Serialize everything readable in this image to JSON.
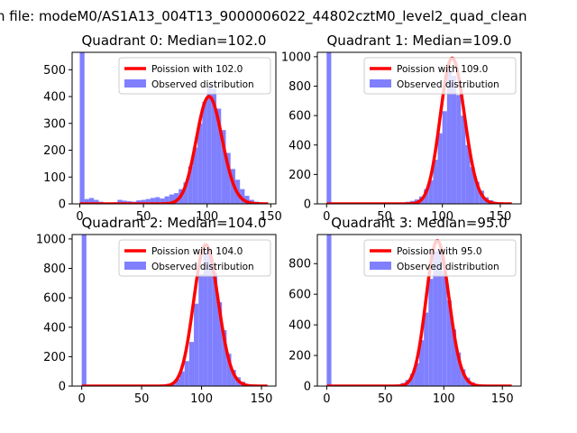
{
  "figure": {
    "suptitle": "n file: modeM0/AS1A13_004T13_9000006022_44802cztM0_level2_quad_clean"
  },
  "colors": {
    "hist": "#8080ff",
    "poisson": "#ff0000",
    "frame": "#000000"
  },
  "chart_data": [
    {
      "type": "bar",
      "title": "Quadrant 0: Median=102.0",
      "xlim": [
        -6,
        154
      ],
      "ylim": [
        0,
        565
      ],
      "xticks": [
        0,
        50,
        100,
        150
      ],
      "yticks": [
        0,
        100,
        200,
        300,
        400,
        500
      ],
      "legend": {
        "placement": "upper right",
        "entries": [
          "Poission with 102.0",
          "Observed distribution"
        ]
      },
      "poisson": {
        "label": "Poission with 102.0",
        "mean": 102.0,
        "peak": 400,
        "x_range": [
          0,
          148
        ]
      },
      "histogram": {
        "label": "Observed distribution",
        "bin_width": 3.7,
        "bins": [
          {
            "x0": 0,
            "h": 565
          },
          {
            "x0": 3.7,
            "h": 18
          },
          {
            "x0": 7.4,
            "h": 22
          },
          {
            "x0": 11.1,
            "h": 15
          },
          {
            "x0": 14.8,
            "h": 8
          },
          {
            "x0": 18.5,
            "h": 5
          },
          {
            "x0": 22.2,
            "h": 3
          },
          {
            "x0": 25.9,
            "h": 6
          },
          {
            "x0": 29.6,
            "h": 15
          },
          {
            "x0": 33.3,
            "h": 12
          },
          {
            "x0": 37,
            "h": 10
          },
          {
            "x0": 40.7,
            "h": 8
          },
          {
            "x0": 44.4,
            "h": 13
          },
          {
            "x0": 48.1,
            "h": 15
          },
          {
            "x0": 51.8,
            "h": 18
          },
          {
            "x0": 55.5,
            "h": 22
          },
          {
            "x0": 59.2,
            "h": 25
          },
          {
            "x0": 62.9,
            "h": 20
          },
          {
            "x0": 66.6,
            "h": 28
          },
          {
            "x0": 70.3,
            "h": 35
          },
          {
            "x0": 74,
            "h": 40
          },
          {
            "x0": 77.7,
            "h": 55
          },
          {
            "x0": 81.4,
            "h": 80
          },
          {
            "x0": 85.1,
            "h": 140
          },
          {
            "x0": 88.8,
            "h": 210
          },
          {
            "x0": 92.5,
            "h": 300
          },
          {
            "x0": 96.2,
            "h": 380
          },
          {
            "x0": 99.9,
            "h": 440
          },
          {
            "x0": 103.6,
            "h": 430
          },
          {
            "x0": 107.3,
            "h": 355
          },
          {
            "x0": 111,
            "h": 275
          },
          {
            "x0": 114.7,
            "h": 190
          },
          {
            "x0": 118.4,
            "h": 130
          },
          {
            "x0": 122.1,
            "h": 90
          },
          {
            "x0": 125.8,
            "h": 55
          },
          {
            "x0": 129.5,
            "h": 30
          },
          {
            "x0": 133.2,
            "h": 15
          },
          {
            "x0": 136.9,
            "h": 8
          },
          {
            "x0": 140.6,
            "h": 4
          },
          {
            "x0": 144.3,
            "h": 2
          }
        ]
      }
    },
    {
      "type": "bar",
      "title": "Quadrant 1: Median=109.0",
      "xlim": [
        -8,
        168
      ],
      "ylim": [
        0,
        1030
      ],
      "xticks": [
        0,
        50,
        100,
        150
      ],
      "yticks": [
        0,
        200,
        400,
        600,
        800,
        1000
      ],
      "legend": {
        "placement": "upper right",
        "entries": [
          "Poission with 109.0",
          "Observed distribution"
        ]
      },
      "poisson": {
        "label": "Poission with 109.0",
        "mean": 109.0,
        "peak": 990,
        "x_range": [
          0,
          160
        ]
      },
      "histogram": {
        "label": "Observed distribution",
        "bin_width": 4.0,
        "bins": [
          {
            "x0": 0,
            "h": 1030
          },
          {
            "x0": 4,
            "h": 3
          },
          {
            "x0": 8,
            "h": 2
          },
          {
            "x0": 12,
            "h": 2
          },
          {
            "x0": 16,
            "h": 2
          },
          {
            "x0": 20,
            "h": 3
          },
          {
            "x0": 24,
            "h": 2
          },
          {
            "x0": 28,
            "h": 2
          },
          {
            "x0": 32,
            "h": 3
          },
          {
            "x0": 36,
            "h": 3
          },
          {
            "x0": 40,
            "h": 3
          },
          {
            "x0": 44,
            "h": 4
          },
          {
            "x0": 48,
            "h": 5
          },
          {
            "x0": 52,
            "h": 6
          },
          {
            "x0": 56,
            "h": 8
          },
          {
            "x0": 60,
            "h": 8
          },
          {
            "x0": 64,
            "h": 10
          },
          {
            "x0": 68,
            "h": 14
          },
          {
            "x0": 72,
            "h": 20
          },
          {
            "x0": 76,
            "h": 30
          },
          {
            "x0": 80,
            "h": 50
          },
          {
            "x0": 84,
            "h": 100
          },
          {
            "x0": 88,
            "h": 160
          },
          {
            "x0": 92,
            "h": 300
          },
          {
            "x0": 96,
            "h": 480
          },
          {
            "x0": 100,
            "h": 630
          },
          {
            "x0": 104,
            "h": 910
          },
          {
            "x0": 108,
            "h": 870
          },
          {
            "x0": 112,
            "h": 740
          },
          {
            "x0": 116,
            "h": 600
          },
          {
            "x0": 120,
            "h": 400
          },
          {
            "x0": 124,
            "h": 250
          },
          {
            "x0": 128,
            "h": 150
          },
          {
            "x0": 132,
            "h": 90
          },
          {
            "x0": 136,
            "h": 45
          },
          {
            "x0": 140,
            "h": 25
          },
          {
            "x0": 144,
            "h": 12
          },
          {
            "x0": 148,
            "h": 5
          },
          {
            "x0": 152,
            "h": 2
          },
          {
            "x0": 156,
            "h": 1
          }
        ]
      }
    },
    {
      "type": "bar",
      "title": "Quadrant 2: Median=104.0",
      "xlim": [
        -8,
        162
      ],
      "ylim": [
        0,
        1030
      ],
      "xticks": [
        0,
        50,
        100,
        150
      ],
      "yticks": [
        0,
        200,
        400,
        600,
        800,
        1000
      ],
      "legend": {
        "placement": "upper right",
        "entries": [
          "Poission with 104.0",
          "Observed distribution"
        ]
      },
      "poisson": {
        "label": "Poission with 104.0",
        "mean": 104.0,
        "peak": 960,
        "x_range": [
          0,
          155
        ]
      },
      "histogram": {
        "label": "Observed distribution",
        "bin_width": 3.9,
        "bins": [
          {
            "x0": 0,
            "h": 1030
          },
          {
            "x0": 3.9,
            "h": 2
          },
          {
            "x0": 7.8,
            "h": 1
          },
          {
            "x0": 11.7,
            "h": 1
          },
          {
            "x0": 15.6,
            "h": 1
          },
          {
            "x0": 19.5,
            "h": 1
          },
          {
            "x0": 23.4,
            "h": 1
          },
          {
            "x0": 27.3,
            "h": 1
          },
          {
            "x0": 31.2,
            "h": 1
          },
          {
            "x0": 35.1,
            "h": 1
          },
          {
            "x0": 39,
            "h": 1
          },
          {
            "x0": 42.9,
            "h": 2
          },
          {
            "x0": 46.8,
            "h": 2
          },
          {
            "x0": 50.7,
            "h": 2
          },
          {
            "x0": 54.6,
            "h": 3
          },
          {
            "x0": 58.5,
            "h": 4
          },
          {
            "x0": 62.4,
            "h": 6
          },
          {
            "x0": 66.3,
            "h": 10
          },
          {
            "x0": 70.2,
            "h": 15
          },
          {
            "x0": 74.1,
            "h": 20
          },
          {
            "x0": 78,
            "h": 50
          },
          {
            "x0": 81.9,
            "h": 100
          },
          {
            "x0": 85.8,
            "h": 170
          },
          {
            "x0": 89.7,
            "h": 300
          },
          {
            "x0": 93.6,
            "h": 560
          },
          {
            "x0": 97.5,
            "h": 760
          },
          {
            "x0": 101.4,
            "h": 930
          },
          {
            "x0": 105.3,
            "h": 890
          },
          {
            "x0": 109.2,
            "h": 770
          },
          {
            "x0": 113.1,
            "h": 570
          },
          {
            "x0": 117,
            "h": 380
          },
          {
            "x0": 120.9,
            "h": 220
          },
          {
            "x0": 124.8,
            "h": 110
          },
          {
            "x0": 128.7,
            "h": 60
          },
          {
            "x0": 132.6,
            "h": 30
          },
          {
            "x0": 136.5,
            "h": 12
          },
          {
            "x0": 140.4,
            "h": 6
          },
          {
            "x0": 144.3,
            "h": 3
          },
          {
            "x0": 148.2,
            "h": 1
          }
        ]
      }
    },
    {
      "type": "bar",
      "title": "Quadrant 3: Median=95.0",
      "xlim": [
        -8,
        166
      ],
      "ylim": [
        0,
        990
      ],
      "xticks": [
        0,
        50,
        100,
        150
      ],
      "yticks": [
        0,
        200,
        400,
        600,
        800
      ],
      "legend": {
        "placement": "upper right",
        "entries": [
          "Poission with 95.0",
          "Observed distribution"
        ]
      },
      "poisson": {
        "label": "Poission with 95.0",
        "mean": 95.0,
        "peak": 950,
        "x_range": [
          0,
          158
        ]
      },
      "histogram": {
        "label": "Observed distribution",
        "bin_width": 3.95,
        "bins": [
          {
            "x0": 0,
            "h": 990
          },
          {
            "x0": 3.95,
            "h": 2
          },
          {
            "x0": 7.9,
            "h": 1
          },
          {
            "x0": 11.85,
            "h": 1
          },
          {
            "x0": 15.8,
            "h": 1
          },
          {
            "x0": 19.75,
            "h": 1
          },
          {
            "x0": 23.7,
            "h": 1
          },
          {
            "x0": 27.65,
            "h": 1
          },
          {
            "x0": 31.6,
            "h": 1
          },
          {
            "x0": 35.55,
            "h": 1
          },
          {
            "x0": 39.5,
            "h": 2
          },
          {
            "x0": 43.45,
            "h": 2
          },
          {
            "x0": 47.4,
            "h": 3
          },
          {
            "x0": 51.35,
            "h": 4
          },
          {
            "x0": 55.3,
            "h": 6
          },
          {
            "x0": 59.25,
            "h": 10
          },
          {
            "x0": 63.2,
            "h": 20
          },
          {
            "x0": 67.15,
            "h": 40
          },
          {
            "x0": 71.1,
            "h": 80
          },
          {
            "x0": 75.05,
            "h": 150
          },
          {
            "x0": 79,
            "h": 300
          },
          {
            "x0": 82.95,
            "h": 480
          },
          {
            "x0": 86.9,
            "h": 700
          },
          {
            "x0": 90.85,
            "h": 880
          },
          {
            "x0": 94.8,
            "h": 890
          },
          {
            "x0": 98.75,
            "h": 750
          },
          {
            "x0": 102.7,
            "h": 560
          },
          {
            "x0": 106.65,
            "h": 370
          },
          {
            "x0": 110.6,
            "h": 220
          },
          {
            "x0": 114.55,
            "h": 110
          },
          {
            "x0": 118.5,
            "h": 55
          },
          {
            "x0": 122.45,
            "h": 25
          },
          {
            "x0": 126.4,
            "h": 10
          },
          {
            "x0": 130.35,
            "h": 4
          },
          {
            "x0": 134.3,
            "h": 2
          },
          {
            "x0": 138.25,
            "h": 1
          }
        ]
      }
    }
  ]
}
